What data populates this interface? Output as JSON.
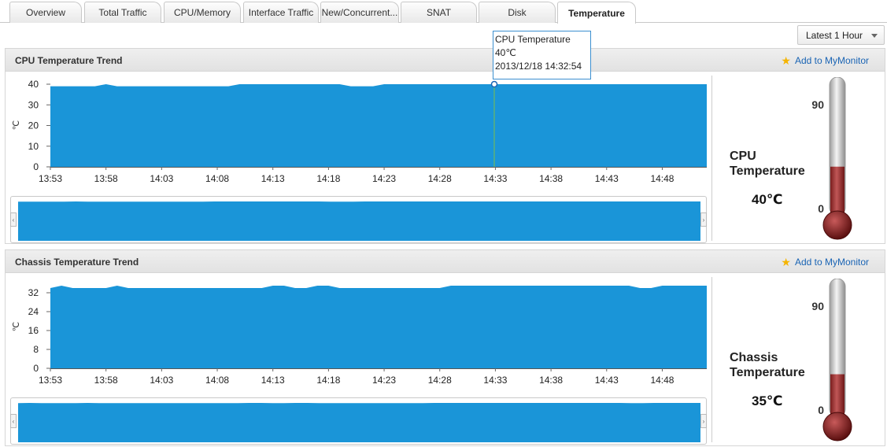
{
  "tabs": [
    {
      "label": "Overview"
    },
    {
      "label": "Total Traffic"
    },
    {
      "label": "CPU/Memory"
    },
    {
      "label": "Interface Traffic"
    },
    {
      "label": "New/Concurrent..."
    },
    {
      "label": "SNAT"
    },
    {
      "label": "Disk"
    },
    {
      "label": "Temperature"
    }
  ],
  "active_tab": "Temperature",
  "range_select": {
    "value": "Latest 1 Hour"
  },
  "panels": [
    {
      "title": "CPU Temperature Trend",
      "add_label": "Add to MyMonitor",
      "gauge_label_line1": "CPU",
      "gauge_label_line2": "Temperature",
      "gauge_value": "40℃",
      "thermo_max": "90",
      "thermo_min": "0"
    },
    {
      "title": "Chassis Temperature Trend",
      "add_label": "Add to MyMonitor",
      "gauge_label_line1": "Chassis",
      "gauge_label_line2": "Temperature",
      "gauge_value": "35℃",
      "thermo_max": "90",
      "thermo_min": "0"
    }
  ],
  "tooltip": {
    "series": "CPU Temperature",
    "value": "40℃",
    "time": "2013/12/18 14:32:54"
  },
  "colors": {
    "area": "#1a95d8",
    "thermo_fill": "#a63a3a",
    "accent": "#1a64b4"
  },
  "chart_data": [
    {
      "type": "area",
      "title": "CPU Temperature Trend",
      "ylabel": "℃",
      "ylim": [
        0,
        40
      ],
      "yticks": [
        0,
        10,
        20,
        30,
        40
      ],
      "xticks": [
        "13:53",
        "13:58",
        "14:03",
        "14:08",
        "14:13",
        "14:18",
        "14:23",
        "14:28",
        "14:33",
        "14:38",
        "14:43",
        "14:48"
      ],
      "x_start": "13:53",
      "x_end": "14:52",
      "values": [
        39,
        39,
        39,
        39,
        39,
        40,
        39,
        39,
        39,
        39,
        39,
        39,
        39,
        39,
        39,
        39,
        39,
        40,
        40,
        40,
        40,
        40,
        40,
        40,
        40,
        40,
        40,
        39,
        39,
        39,
        40,
        40,
        40,
        40,
        40,
        40,
        40,
        40,
        40,
        40,
        40,
        40,
        40,
        40,
        40,
        40,
        40,
        40,
        40,
        40,
        40,
        40,
        40,
        40,
        40,
        40,
        40,
        40,
        40,
        40
      ],
      "gauge": {
        "current": 40,
        "min": 0,
        "max": 90
      },
      "highlight": {
        "time": "14:32:54",
        "value": 40
      }
    },
    {
      "type": "area",
      "title": "Chassis Temperature Trend",
      "ylabel": "℃",
      "ylim": [
        0,
        35
      ],
      "yticks": [
        0,
        8,
        16,
        24,
        32
      ],
      "xticks": [
        "13:53",
        "13:58",
        "14:03",
        "14:08",
        "14:13",
        "14:18",
        "14:23",
        "14:28",
        "14:33",
        "14:38",
        "14:43",
        "14:48"
      ],
      "x_start": "13:53",
      "x_end": "14:52",
      "values": [
        34,
        35,
        34,
        34,
        34,
        34,
        35,
        34,
        34,
        34,
        34,
        34,
        34,
        34,
        34,
        34,
        34,
        34,
        34,
        34,
        35,
        35,
        34,
        34,
        35,
        35,
        34,
        34,
        34,
        34,
        34,
        34,
        34,
        34,
        34,
        34,
        35,
        35,
        35,
        35,
        35,
        35,
        35,
        35,
        35,
        35,
        35,
        35,
        35,
        35,
        35,
        35,
        35,
        34,
        34,
        35,
        35,
        35,
        35,
        35
      ],
      "gauge": {
        "current": 35,
        "min": 0,
        "max": 90
      }
    }
  ]
}
